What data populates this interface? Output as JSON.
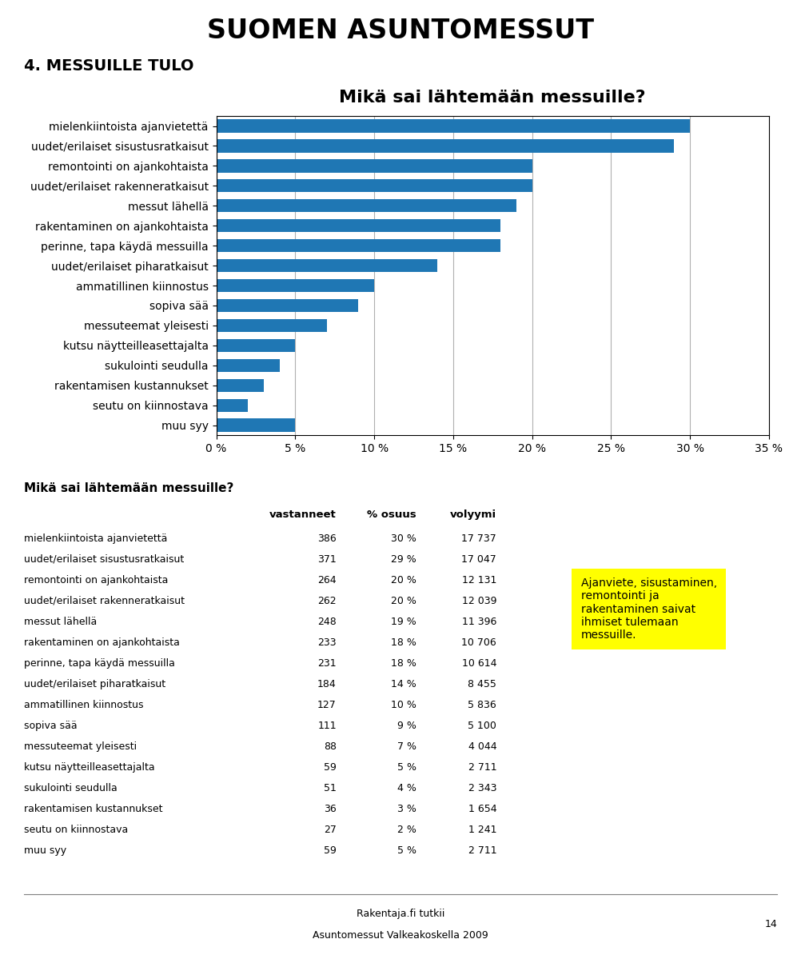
{
  "chart_data": {
    "type": "bar",
    "orientation": "horizontal",
    "title": "Mikä sai lähtemään messuille?",
    "categories": [
      "mielenkiintoista ajanvietettä",
      "uudet/erilaiset sisustusratkaisut",
      "remontointi on ajankohtaista",
      "uudet/erilaiset rakenneratkaisut",
      "messut lähellä",
      "rakentaminen on ajankohtaista",
      "perinne, tapa käydä messuilla",
      "uudet/erilaiset piharatkaisut",
      "ammatillinen kiinnostus",
      "sopiva sää",
      "messuteemat yleisesti",
      "kutsu näytteilleasettajalta",
      "sukulointi seudulla",
      "rakentamisen kustannukset",
      "seutu on kiinnostava",
      "muu syy"
    ],
    "values": [
      30,
      29,
      20,
      20,
      19,
      18,
      18,
      14,
      10,
      9,
      7,
      5,
      4,
      3,
      2,
      5
    ],
    "xlim": [
      0,
      35
    ],
    "xticks": [
      {
        "value": 0,
        "label": "0 %"
      },
      {
        "value": 5,
        "label": "5 %"
      },
      {
        "value": 10,
        "label": "10 %"
      },
      {
        "value": 15,
        "label": "15 %"
      },
      {
        "value": 20,
        "label": "20 %"
      },
      {
        "value": 25,
        "label": "25 %"
      },
      {
        "value": 30,
        "label": "30 %"
      },
      {
        "value": 35,
        "label": "35 %"
      }
    ],
    "grid": true,
    "annotations": [
      "SUOMEN ASUNTOMESSUT",
      "4. MESSUILLE TULO",
      "Ajanviete, sisustaminen,\nremontointi ja\nrakentaminen saivat\nihmiset tulemaan\nmessuille.",
      "Rakentaja.fi tutkii",
      "Asuntomessut Valkeakoskella 2009",
      "14"
    ],
    "table": {
      "title": "Mikä sai lähtemään messuille?",
      "columns": [
        "vastanneet",
        "% osuus",
        "volyymi"
      ],
      "rows": [
        [
          "mielenkiintoista ajanvietettä",
          "386",
          "30 %",
          "17 737"
        ],
        [
          "uudet/erilaiset sisustusratkaisut",
          "371",
          "29 %",
          "17 047"
        ],
        [
          "remontointi on ajankohtaista",
          "264",
          "20 %",
          "12 131"
        ],
        [
          "uudet/erilaiset rakenneratkaisut",
          "262",
          "20 %",
          "12 039"
        ],
        [
          "messut lähellä",
          "248",
          "19 %",
          "11 396"
        ],
        [
          "rakentaminen on ajankohtaista",
          "233",
          "18 %",
          "10 706"
        ],
        [
          "perinne, tapa käydä messuilla",
          "231",
          "18 %",
          "10 614"
        ],
        [
          "uudet/erilaiset piharatkaisut",
          "184",
          "14 %",
          "8 455"
        ],
        [
          "ammatillinen kiinnostus",
          "127",
          "10 %",
          "5 836"
        ],
        [
          "sopiva sää",
          "111",
          "9 %",
          "5 100"
        ],
        [
          "messuteemat yleisesti",
          "88",
          "7 %",
          "4 044"
        ],
        [
          "kutsu näytteilleasettajalta",
          "59",
          "5 %",
          "2 711"
        ],
        [
          "sukulointi seudulla",
          "51",
          "4 %",
          "2 343"
        ],
        [
          "rakentamisen kustannukset",
          "36",
          "3 %",
          "1 654"
        ],
        [
          "seutu on kiinnostava",
          "27",
          "2 %",
          "1 241"
        ],
        [
          "muu syy",
          "59",
          "5 %",
          "2 711"
        ]
      ]
    }
  }
}
